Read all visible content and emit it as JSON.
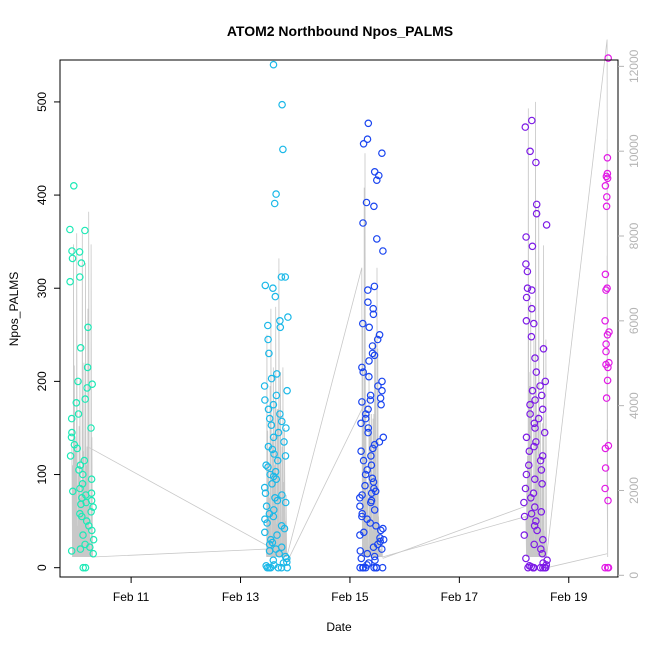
{
  "chart_data": {
    "type": "scatter",
    "title": "ATOM2 Northbound Npos_PALMS",
    "xlabel": "Date",
    "ylabel": "Npos_PALMS",
    "x_ticks": [
      "Feb 11",
      "Feb 13",
      "Feb 15",
      "Feb 17",
      "Feb 19"
    ],
    "x_range_days": [
      9.7,
      19.9
    ],
    "ylim": [
      -10,
      545
    ],
    "y_ticks": [
      0,
      100,
      200,
      300,
      400,
      500
    ],
    "y2lim": [
      -40,
      12150
    ],
    "y2_ticks": [
      0,
      2000,
      4000,
      6000,
      8000,
      10000,
      12000
    ],
    "colors": {
      "cluster1": "#1de9b6",
      "cluster2": "#1ab8e8",
      "cluster3": "#1a45f0",
      "cluster4": "#7c1ae6",
      "cluster5": "#e21ae6",
      "secondary_line": "#c8c8c8"
    },
    "series": [
      {
        "x_day": 10.1,
        "values": [
          410,
          363,
          362,
          340,
          339,
          332,
          327,
          312,
          307,
          258,
          236,
          215,
          200,
          197,
          193,
          181,
          177,
          165,
          160,
          150,
          145,
          140,
          132,
          128,
          120,
          115,
          110,
          105,
          100,
          95,
          90,
          85,
          82,
          80,
          78,
          75,
          72,
          70,
          68,
          65,
          60,
          58,
          55,
          50,
          45,
          40,
          35,
          30,
          25,
          22,
          20,
          18,
          15,
          0,
          0
        ]
      },
      {
        "x_day": 13.65,
        "values": [
          540,
          497,
          449,
          401,
          391,
          312,
          312,
          303,
          300,
          291,
          269,
          265,
          260,
          258,
          245,
          230,
          208,
          203,
          195,
          190,
          185,
          180,
          175,
          170,
          165,
          160,
          157,
          153,
          150,
          145,
          140,
          135,
          130,
          127,
          122,
          120,
          115,
          110,
          108,
          103,
          100,
          98,
          95,
          90,
          86,
          80,
          78,
          75,
          72,
          70,
          66,
          62,
          58,
          55,
          52,
          48,
          45,
          42,
          38,
          35,
          30,
          27,
          25,
          22,
          20,
          18,
          15,
          12,
          10,
          8,
          6,
          5,
          3,
          2,
          0,
          0,
          0,
          0,
          0,
          0
        ]
      },
      {
        "x_day": 15.4,
        "values": [
          477,
          460,
          455,
          445,
          425,
          421,
          416,
          392,
          388,
          370,
          353,
          340,
          302,
          298,
          285,
          278,
          272,
          262,
          258,
          250,
          245,
          238,
          230,
          228,
          222,
          215,
          210,
          205,
          200,
          195,
          190,
          185,
          182,
          180,
          178,
          175,
          170,
          165,
          160,
          155,
          150,
          145,
          140,
          135,
          132,
          128,
          125,
          120,
          115,
          110,
          105,
          100,
          96,
          92,
          88,
          85,
          82,
          80,
          78,
          75,
          72,
          70,
          66,
          62,
          58,
          55,
          52,
          48,
          45,
          42,
          40,
          38,
          35,
          32,
          30,
          28,
          25,
          22,
          20,
          18,
          15,
          12,
          10,
          8,
          5,
          3,
          0,
          0,
          0,
          0,
          0,
          0,
          0,
          0
        ]
      },
      {
        "x_day": 18.4,
        "values": [
          480,
          473,
          447,
          435,
          390,
          380,
          368,
          355,
          345,
          326,
          318,
          300,
          298,
          290,
          278,
          265,
          262,
          248,
          235,
          225,
          210,
          200,
          195,
          190,
          185,
          180,
          175,
          170,
          165,
          160,
          155,
          150,
          145,
          140,
          135,
          130,
          125,
          120,
          115,
          110,
          105,
          100,
          95,
          90,
          85,
          80,
          75,
          70,
          65,
          60,
          58,
          55,
          50,
          45,
          40,
          35,
          30,
          25,
          20,
          15,
          10,
          8,
          5,
          3,
          2,
          1,
          0,
          0,
          0,
          0,
          0,
          0,
          0,
          0
        ]
      },
      {
        "x_day": 19.7,
        "values": [
          547,
          440,
          423,
          420,
          418,
          410,
          398,
          388,
          315,
          300,
          298,
          265,
          253,
          250,
          240,
          232,
          220,
          218,
          215,
          201,
          182,
          131,
          128,
          107,
          85,
          72,
          0,
          0,
          0
        ]
      }
    ]
  }
}
